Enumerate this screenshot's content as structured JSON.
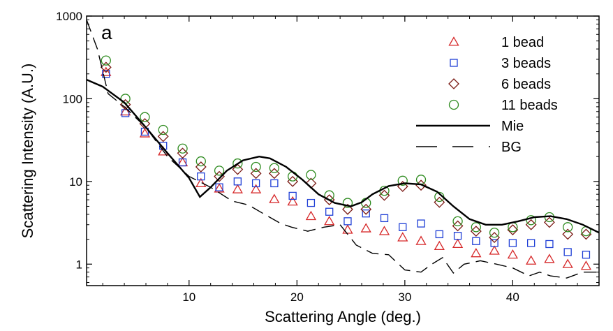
{
  "chart_data": {
    "type": "scatter",
    "panel_label": "a",
    "xlabel": "Scattering Angle (deg.)",
    "ylabel": "Scattering Intensity (A.U.)",
    "xlim": [
      0.5,
      48
    ],
    "ylim": [
      0.55,
      1000
    ],
    "yscale": "log",
    "grid": false,
    "legend_position": "top-right",
    "x_ticks": [
      10,
      20,
      30,
      40
    ],
    "y_ticks": [
      1,
      10,
      100,
      1000
    ],
    "x_tick_labels": [
      "10",
      "20",
      "30",
      "40"
    ],
    "y_tick_labels": [
      "1",
      "10",
      "100",
      "1000"
    ],
    "series": [
      {
        "name": "1 bead",
        "kind": "marker",
        "marker": "triangle",
        "color": "#d62728",
        "x": [
          2.3,
          4.1,
          5.9,
          7.6,
          9.4,
          11.1,
          12.8,
          14.5,
          16.2,
          17.9,
          19.6,
          21.3,
          23.0,
          24.7,
          26.4,
          28.1,
          29.8,
          31.5,
          33.2,
          34.9,
          36.6,
          38.3,
          40.0,
          41.7,
          43.4,
          45.1,
          46.8
        ],
        "y": [
          210,
          70,
          38,
          23,
          17,
          9.5,
          8.2,
          8.0,
          8.0,
          6.1,
          5.7,
          3.8,
          3.3,
          2.6,
          2.7,
          2.5,
          2.1,
          1.9,
          1.65,
          1.75,
          1.35,
          1.45,
          1.3,
          1.1,
          1.15,
          1.0,
          0.95
        ]
      },
      {
        "name": "3 beads",
        "kind": "marker",
        "marker": "square",
        "color": "#1f3fd6",
        "x": [
          2.3,
          4.1,
          5.9,
          7.6,
          9.4,
          11.1,
          12.8,
          14.5,
          16.2,
          17.9,
          19.6,
          21.3,
          23.0,
          24.7,
          26.4,
          28.1,
          29.8,
          31.5,
          33.2,
          34.9,
          36.6,
          38.3,
          40.0,
          41.7,
          43.4,
          45.1,
          46.8
        ],
        "y": [
          200,
          67,
          40,
          27,
          17,
          11.5,
          8.5,
          10,
          9.5,
          9.5,
          6.7,
          5.5,
          4.3,
          3.3,
          4.1,
          3.6,
          2.8,
          3.1,
          2.3,
          2.2,
          1.9,
          1.8,
          1.8,
          1.8,
          1.75,
          1.4,
          1.3
        ]
      },
      {
        "name": "6 beads",
        "kind": "marker",
        "marker": "diamond",
        "color": "#7a1a14",
        "x": [
          2.3,
          4.1,
          5.9,
          7.6,
          9.4,
          11.1,
          12.8,
          14.5,
          16.2,
          17.9,
          19.6,
          21.3,
          23.0,
          24.7,
          26.4,
          28.1,
          29.8,
          31.5,
          33.2,
          34.9,
          36.6,
          38.3,
          40.0,
          41.7,
          43.4,
          45.1,
          46.8
        ],
        "y": [
          240,
          85,
          50,
          35,
          22,
          15,
          11.5,
          14,
          12.5,
          12.5,
          10,
          9.5,
          6.0,
          4.6,
          4.6,
          6.8,
          8.7,
          9.0,
          5.6,
          2.9,
          2.5,
          2.1,
          2.6,
          3.0,
          3.2,
          2.3,
          2.3
        ]
      },
      {
        "name": "11 beads",
        "kind": "marker",
        "marker": "circle",
        "color": "#2e8b1f",
        "x": [
          2.3,
          4.1,
          5.9,
          7.6,
          9.4,
          11.1,
          12.8,
          14.5,
          16.2,
          17.9,
          19.6,
          21.3,
          23.0,
          24.7,
          26.4,
          28.1,
          29.8,
          31.5,
          33.2,
          34.9,
          36.6,
          38.3,
          40.0,
          41.7,
          43.4,
          45.1,
          46.8
        ],
        "y": [
          290,
          100,
          60,
          42,
          25,
          17.5,
          13.5,
          16.5,
          15,
          14.5,
          11.5,
          12,
          6.8,
          5.5,
          5.5,
          7.7,
          10.2,
          10.5,
          6.5,
          3.3,
          2.8,
          2.4,
          2.8,
          3.4,
          3.7,
          2.8,
          2.5
        ]
      },
      {
        "name": "Mie",
        "kind": "line",
        "style": "solid",
        "color": "#000000",
        "x": [
          0.5,
          2,
          4,
          6,
          8,
          10,
          11,
          12,
          13.5,
          15,
          16.5,
          17.5,
          19,
          20.5,
          22,
          23.5,
          25,
          26,
          27,
          28.5,
          30,
          31.5,
          33,
          34.5,
          36,
          37.5,
          39,
          40.5,
          42,
          43.5,
          45,
          46.5,
          48
        ],
        "y": [
          170,
          140,
          90,
          45,
          22,
          11,
          6.5,
          8.5,
          13.5,
          18,
          20,
          19,
          15,
          10.5,
          7.0,
          5.5,
          5.0,
          5.6,
          7.0,
          8.8,
          9.5,
          9.2,
          7.5,
          5.0,
          3.5,
          3.0,
          3.0,
          3.3,
          3.7,
          3.8,
          3.5,
          3.0,
          2.4
        ]
      },
      {
        "name": "BG",
        "kind": "line",
        "style": "dashed",
        "color": "#000000",
        "x": [
          0.5,
          1.5,
          2.5,
          4,
          6,
          8,
          10,
          12,
          14,
          15.5,
          17,
          18.5,
          19.5,
          21,
          22.5,
          24,
          25.5,
          27,
          28.5,
          30,
          31.5,
          32.5,
          33.5,
          34.5,
          35.5,
          37,
          38.5,
          40,
          41.5,
          42.5,
          43.5,
          45,
          46.5,
          48
        ],
        "y": [
          900,
          400,
          115,
          80,
          45,
          20,
          11.5,
          8.5,
          5.8,
          5.2,
          4.0,
          3.1,
          2.8,
          2.5,
          2.8,
          3.0,
          1.7,
          1.35,
          1.3,
          0.85,
          0.8,
          1.0,
          1.2,
          0.78,
          1.0,
          1.1,
          1.0,
          0.9,
          0.72,
          0.8,
          0.72,
          0.68,
          0.8,
          0.8
        ]
      }
    ]
  }
}
